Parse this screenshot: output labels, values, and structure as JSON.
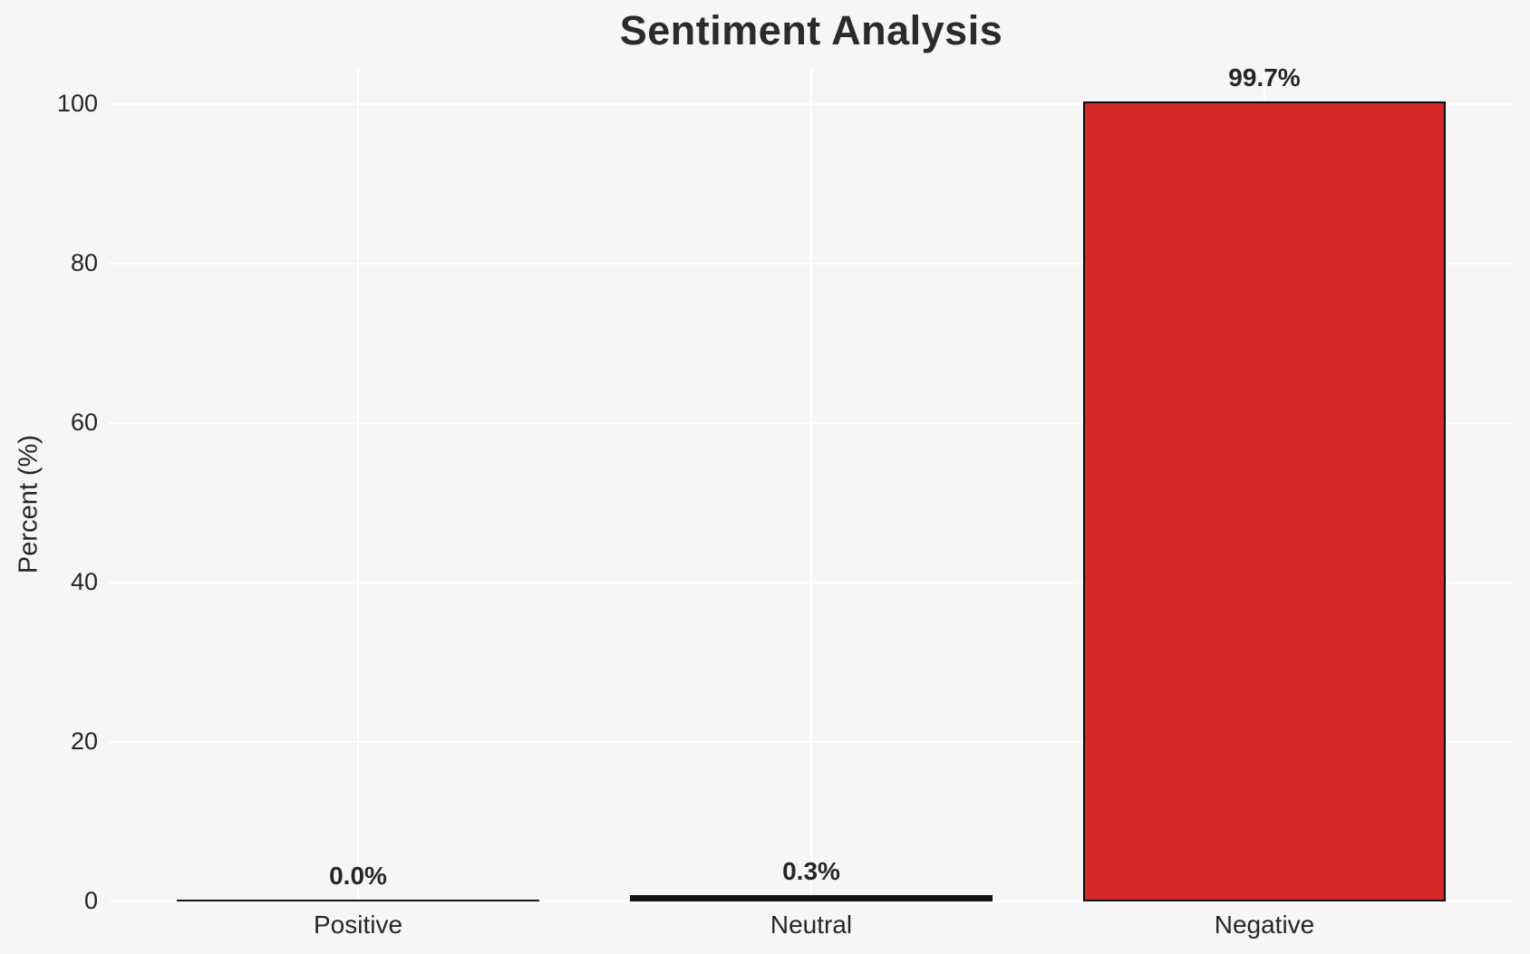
{
  "title": "Sentiment Analysis",
  "axes": {
    "y_label": "Percent (%)",
    "y_tick_labels": [
      "0",
      "20",
      "40",
      "60",
      "80",
      "100"
    ]
  },
  "colors": {
    "background": "#f6f6f6",
    "gridline": "#ffffff",
    "negative_bar_fill": "#d62728",
    "bar_edge": "#0d0d0d",
    "text": "#262626"
  },
  "chart_data": {
    "type": "bar",
    "title": "Sentiment Analysis",
    "xlabel": "",
    "ylabel": "Percent (%)",
    "categories": [
      "Positive",
      "Neutral",
      "Negative"
    ],
    "values": [
      0.0,
      0.3,
      99.7
    ],
    "value_labels": [
      "0.0%",
      "0.3%",
      "99.7%"
    ],
    "bar_colors": [
      "#141414",
      "#141414",
      "#d62728"
    ],
    "bar_edge_color": "#0d0d0d",
    "yticks": [
      0,
      20,
      40,
      60,
      80,
      100
    ],
    "ylim": [
      0,
      104.5
    ],
    "xlim": [
      -0.55,
      2.55
    ],
    "bar_width": 0.8,
    "grid": "horizontal and vertical white gridlines on light gray background",
    "legend": "none"
  }
}
